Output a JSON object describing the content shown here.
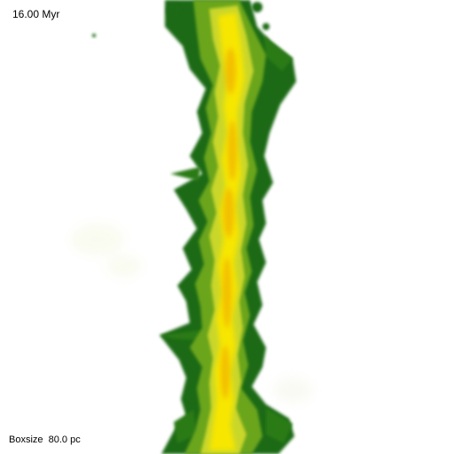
{
  "overlay": {
    "time": "16.00 Myr",
    "boxsize": "Boxsize  80.0 pc"
  },
  "colors": {
    "background": "#ffffff",
    "outer_envelope": "#1e6b12",
    "mid_envelope": "#6aa51e",
    "inner_envelope": "#c9d62a",
    "core": "#f7e600",
    "hot_core": "#f2b800"
  }
}
